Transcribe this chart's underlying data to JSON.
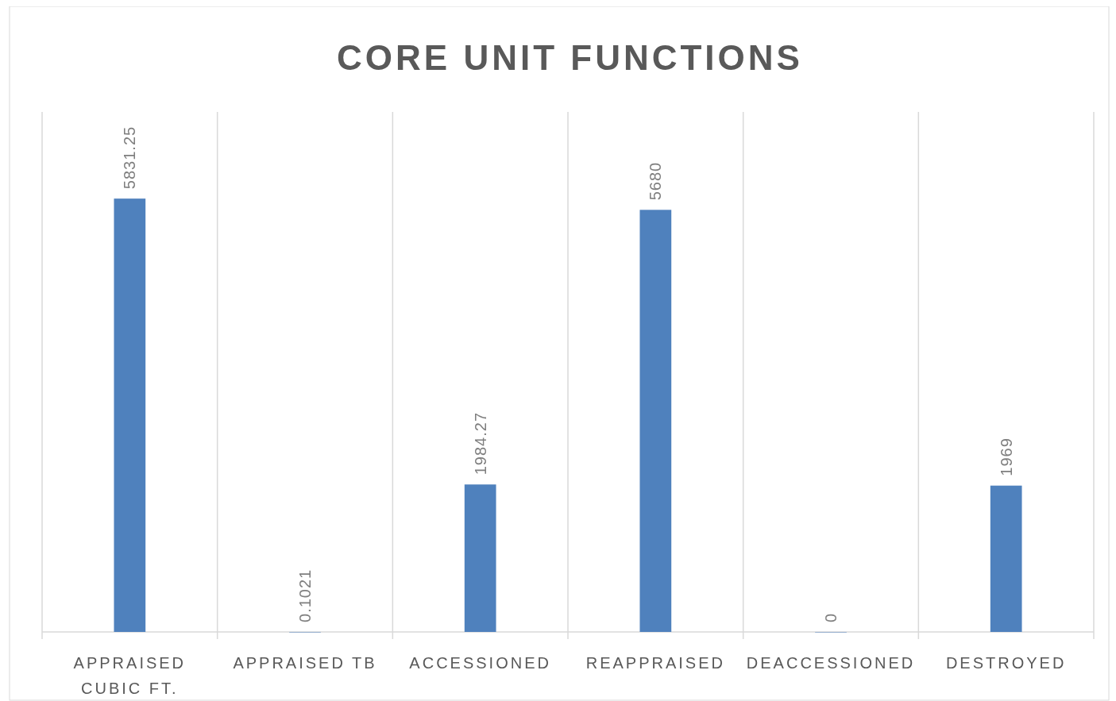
{
  "chart_data": {
    "type": "bar",
    "title": "CORE UNIT FUNCTIONS",
    "categories": [
      "APPRAISED CUBIC FT.",
      "APPRAISED TB",
      "ACCESSIONED",
      "REAPPRAISED",
      "DEACCESSIONED",
      "DESTROYED"
    ],
    "values": [
      5831.25,
      0.1021,
      1984.27,
      5680,
      0,
      1969
    ],
    "color": "#4f81bd",
    "data_labels": true,
    "grid": "x"
  }
}
